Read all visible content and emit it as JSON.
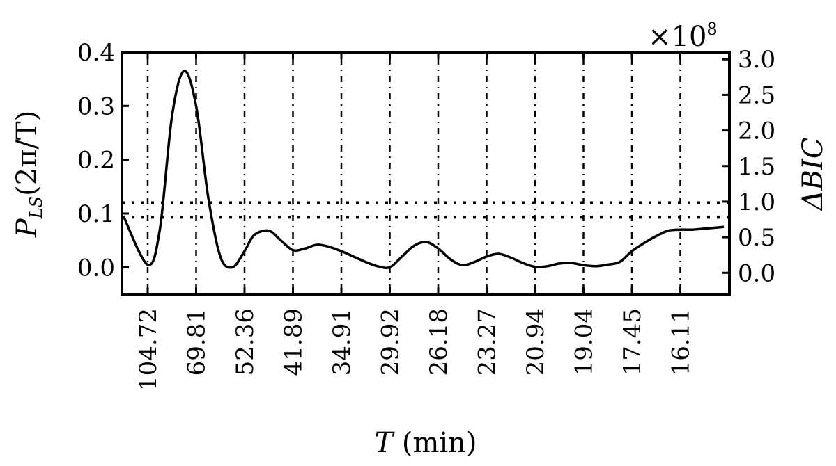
{
  "chart_data": {
    "type": "line",
    "xlabel": {
      "symbol": "T",
      "unit": " (min)"
    },
    "ylabel_left": {
      "p": "P",
      "sub": "LS",
      "rest": "(2π/T)"
    },
    "ylabel_right": "ΔBIC",
    "right_axis_multiplier": {
      "base": "×10",
      "exp": "8"
    },
    "x_tick_labels": [
      "104.72",
      "69.81",
      "52.36",
      "41.89",
      "34.91",
      "29.92",
      "26.18",
      "23.27",
      "20.94",
      "19.04",
      "17.45",
      "16.11"
    ],
    "y_left": {
      "lim": [
        -0.05,
        0.4
      ],
      "ticks": [
        "0.0",
        "0.1",
        "0.2",
        "0.3",
        "0.4"
      ]
    },
    "y_right": {
      "lim": [
        -0.3,
        3.1
      ],
      "ticks": [
        "0.0",
        "0.5",
        "1.0",
        "1.5",
        "2.0",
        "2.5",
        "3.0"
      ]
    },
    "grid": true,
    "threshold_levels": [
      0.093,
      0.12
    ],
    "series": [
      {
        "x_period_index": [
          -0.5,
          0.0,
          0.25,
          0.5,
          0.75,
          1.0,
          1.25,
          1.5,
          1.75,
          2.0,
          2.2,
          2.5,
          2.75,
          3.0,
          3.25,
          3.5,
          3.75,
          4.0,
          4.25,
          4.5,
          4.75,
          5.0,
          5.25,
          5.5,
          5.75,
          6.0,
          6.25,
          6.5,
          6.75,
          7.0,
          7.25,
          7.5,
          7.75,
          8.0,
          8.25,
          8.5,
          8.75,
          9.0,
          9.25,
          9.5,
          9.75,
          10.0,
          10.25,
          10.5,
          10.75,
          11.0,
          11.25,
          11.5,
          11.9
        ],
        "y": [
          0.095,
          0.005,
          0.07,
          0.28,
          0.365,
          0.3,
          0.13,
          0.02,
          0.0,
          0.03,
          0.06,
          0.068,
          0.05,
          0.032,
          0.035,
          0.042,
          0.038,
          0.03,
          0.02,
          0.01,
          0.002,
          0.0,
          0.02,
          0.04,
          0.047,
          0.035,
          0.015,
          0.004,
          0.01,
          0.02,
          0.025,
          0.018,
          0.008,
          0.001,
          0.002,
          0.007,
          0.008,
          0.004,
          0.002,
          0.005,
          0.01,
          0.03,
          0.045,
          0.058,
          0.068,
          0.07,
          0.07,
          0.072,
          0.075
        ]
      }
    ]
  }
}
